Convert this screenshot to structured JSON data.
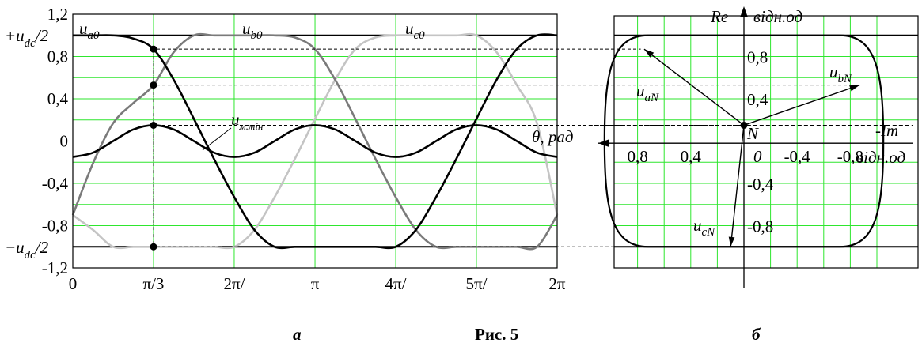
{
  "figure_caption": "Рис. 5",
  "colors": {
    "grid": "#2ee62e",
    "series_a": "#000000",
    "series_b": "#7a7a7a",
    "series_c": "#c4c4c4",
    "min": "#000000"
  },
  "chart_data": [
    {
      "panel_label": "а",
      "type": "line",
      "grid": true,
      "x_unit": "rad",
      "ylim": [
        -1.2,
        1.2
      ],
      "y_ticks": [
        "1,2",
        "0,8",
        "0,4",
        "0",
        "-0,4",
        "-0,8",
        "-1,2"
      ],
      "y_tick_values": [
        1.2,
        0.8,
        0.4,
        0,
        -0.4,
        -0.8,
        -1.2
      ],
      "x_ticks": [
        "0",
        "π/3",
        "2π/",
        "π",
        "4π/",
        "5π/",
        "2π"
      ],
      "x_tick_values": [
        0,
        1.047,
        2.094,
        3.142,
        4.189,
        5.236,
        6.283
      ],
      "level_labels": {
        "plus_pre": "+u",
        "plus_sub": "dc",
        "plus_post": "/2",
        "minus_pre": "−u",
        "minus_sub": "dc",
        "minus_post": "/2"
      },
      "levels": [
        1.0,
        -1.0
      ],
      "series": [
        {
          "key": "a",
          "label_main": "u",
          "label_sub": "a0",
          "x": [
            0,
            0.262,
            0.524,
            0.785,
            1.047,
            1.309,
            1.571,
            1.833,
            2.094,
            2.356,
            2.618,
            2.88,
            3.142,
            3.403,
            3.665,
            3.927,
            4.189,
            4.451,
            4.712,
            4.974,
            5.236,
            5.498,
            5.76,
            6.021,
            6.283
          ],
          "y": [
            1,
            1,
            1,
            0.97,
            0.87,
            0.58,
            0.21,
            -0.17,
            -0.53,
            -0.84,
            -1,
            -1,
            -1,
            -1,
            -1,
            -1,
            -1,
            -0.84,
            -0.53,
            -0.17,
            0.21,
            0.58,
            0.87,
            1,
            1
          ]
        },
        {
          "key": "b",
          "label_main": "u",
          "label_sub": "b0",
          "x": [
            0,
            0.262,
            0.524,
            0.785,
            1.047,
            1.309,
            1.571,
            1.833,
            2.094,
            2.356,
            2.618,
            2.88,
            3.142,
            3.403,
            3.665,
            3.927,
            4.189,
            4.451,
            4.712,
            4.974,
            5.236,
            5.498,
            5.76,
            6.021,
            6.283
          ],
          "y": [
            -0.7,
            -0.21,
            0.17,
            0.36,
            0.53,
            0.84,
            1,
            1,
            1,
            1,
            1,
            0.98,
            0.87,
            0.58,
            0.21,
            -0.17,
            -0.53,
            -0.84,
            -1,
            -1,
            -1,
            -1,
            -1,
            -1,
            -0.7
          ]
        },
        {
          "key": "c",
          "label_main": "u",
          "label_sub": "c0",
          "x": [
            0,
            0.262,
            0.524,
            0.785,
            1.047,
            1.309,
            1.571,
            1.833,
            2.094,
            2.356,
            2.618,
            2.88,
            3.142,
            3.403,
            3.665,
            3.927,
            4.189,
            4.451,
            4.712,
            4.974,
            5.236,
            5.498,
            5.76,
            6.021,
            6.283
          ],
          "y": [
            -0.7,
            -0.84,
            -1,
            -1,
            -1,
            -1,
            -1,
            -1,
            -1,
            -0.84,
            -0.53,
            -0.17,
            0.21,
            0.58,
            0.87,
            0.98,
            1,
            1,
            1,
            1,
            1,
            0.84,
            0.53,
            0.17,
            -0.7
          ]
        },
        {
          "key": "min",
          "label_main": "u",
          "label_sub": "м.мін",
          "x": [
            0,
            0.262,
            0.524,
            0.785,
            1.047,
            1.309,
            1.571,
            1.833,
            2.094,
            2.356,
            2.618,
            2.88,
            3.142,
            3.403,
            3.665,
            3.927,
            4.189,
            4.451,
            4.712,
            4.974,
            5.236,
            5.498,
            5.76,
            6.021,
            6.283
          ],
          "y": [
            -0.15,
            -0.11,
            0,
            0.11,
            0.15,
            0.11,
            0,
            -0.11,
            -0.15,
            -0.11,
            0,
            0.11,
            0.15,
            0.11,
            0,
            -0.11,
            -0.15,
            -0.11,
            0,
            0.11,
            0.15,
            0.11,
            0,
            -0.11,
            -0.15
          ]
        }
      ],
      "markers": [
        {
          "x": 1.047,
          "y": 0.87
        },
        {
          "x": 1.047,
          "y": 0.53
        },
        {
          "x": 1.047,
          "y": 0.15
        },
        {
          "x": 1.047,
          "y": -1.0
        }
      ],
      "guide_line_x": 1.047
    },
    {
      "panel_label": "б",
      "type": "scatter",
      "grid": true,
      "axis_re_label": "Re",
      "axis_re_unit": "відн.од",
      "axis_im_label": "-Im",
      "axis_im_unit": "відн.од",
      "theta_label": "θ, рад",
      "origin_label": "N",
      "origin_zero": "0",
      "im_ticks": [
        "0,8",
        "0,4",
        "-0,4",
        "-0,8"
      ],
      "im_tick_values": [
        0.8,
        0.4,
        -0.4,
        -0.8
      ],
      "re_ticks": [
        "0,8",
        "0,4",
        "-0,4",
        "-0,8"
      ],
      "re_tick_values": [
        0.8,
        0.4,
        -0.4,
        -0.8
      ],
      "levels": [
        1.0,
        -1.0
      ],
      "origin": {
        "im": 0,
        "re": 0.15
      },
      "vectors": [
        {
          "key": "aN",
          "label_main": "u",
          "label_sub": "aN",
          "im": 0.75,
          "re": 0.87
        },
        {
          "key": "bN",
          "label_main": "u",
          "label_sub": "bN",
          "im": -0.87,
          "re": 0.53
        },
        {
          "key": "cN",
          "label_main": "u",
          "label_sub": "cN",
          "im": 0.1,
          "re": -1.0
        }
      ]
    }
  ]
}
